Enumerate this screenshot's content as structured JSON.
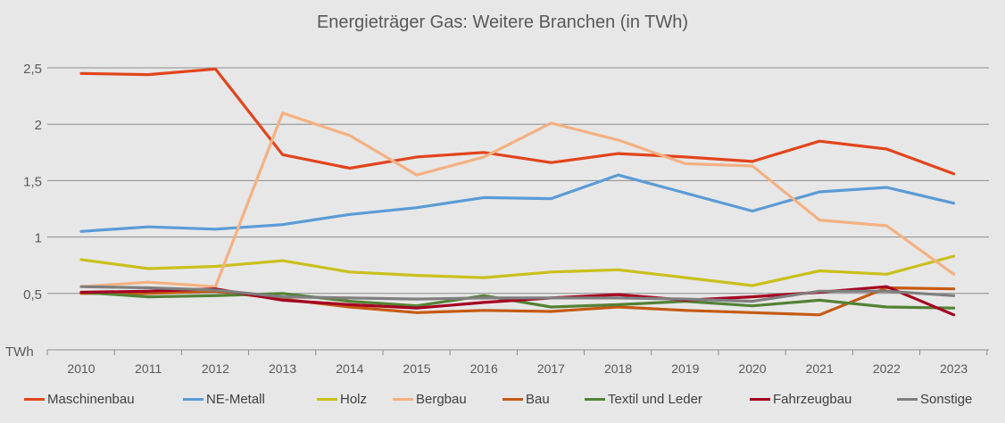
{
  "chart_data": {
    "type": "line",
    "title": "Energieträger Gas: Weitere Branchen (in TWh)",
    "ylabel": "TWh",
    "xlabel": "",
    "x": [
      "2010",
      "2011",
      "2012",
      "2013",
      "2014",
      "2015",
      "2016",
      "2017",
      "2018",
      "2019",
      "2020",
      "2021",
      "2022",
      "2023"
    ],
    "yticks": [
      "0,5",
      "1",
      "1,5",
      "2",
      "2,5"
    ],
    "ytick_values": [
      0.5,
      1,
      1.5,
      2,
      2.5
    ],
    "ylim": [
      0,
      2.7
    ],
    "grid": true,
    "legend": "bottom",
    "series": [
      {
        "name": "Maschinenbau",
        "color": "#e2441c",
        "values": [
          2.45,
          2.44,
          2.49,
          1.73,
          1.61,
          1.71,
          1.75,
          1.66,
          1.74,
          1.71,
          1.67,
          1.85,
          1.78,
          1.56
        ]
      },
      {
        "name": "NE-Metall",
        "color": "#5b9bd5",
        "values": [
          1.05,
          1.09,
          1.07,
          1.11,
          1.2,
          1.26,
          1.35,
          1.34,
          1.55,
          1.39,
          1.23,
          1.4,
          1.44,
          1.3
        ]
      },
      {
        "name": "Holz",
        "color": "#c9c01c",
        "values": [
          0.8,
          0.72,
          0.74,
          0.79,
          0.69,
          0.66,
          0.64,
          0.69,
          0.71,
          0.64,
          0.57,
          0.7,
          0.67,
          0.83
        ]
      },
      {
        "name": "Bergbau",
        "color": "#f4b183",
        "values": [
          0.56,
          0.6,
          0.56,
          2.1,
          1.9,
          1.55,
          1.71,
          2.01,
          1.86,
          1.65,
          1.63,
          1.15,
          1.1,
          0.67
        ]
      },
      {
        "name": "Bau",
        "color": "#c55a11",
        "values": [
          0.5,
          0.5,
          0.52,
          0.45,
          0.38,
          0.33,
          0.35,
          0.34,
          0.38,
          0.35,
          0.33,
          0.31,
          0.55,
          0.54
        ]
      },
      {
        "name": "Textil und Leder",
        "color": "#548235",
        "values": [
          0.51,
          0.47,
          0.48,
          0.5,
          0.43,
          0.39,
          0.48,
          0.38,
          0.4,
          0.43,
          0.39,
          0.44,
          0.38,
          0.37
        ]
      },
      {
        "name": "Fahrzeugbau",
        "color": "#a50021",
        "values": [
          0.51,
          0.52,
          0.54,
          0.44,
          0.4,
          0.37,
          0.42,
          0.46,
          0.49,
          0.44,
          0.47,
          0.51,
          0.56,
          0.31
        ]
      },
      {
        "name": "Sonstige",
        "color": "#7f7f7f",
        "values": [
          0.56,
          0.55,
          0.53,
          0.47,
          0.46,
          0.45,
          0.46,
          0.46,
          0.46,
          0.45,
          0.43,
          0.52,
          0.52,
          0.48
        ]
      }
    ]
  }
}
